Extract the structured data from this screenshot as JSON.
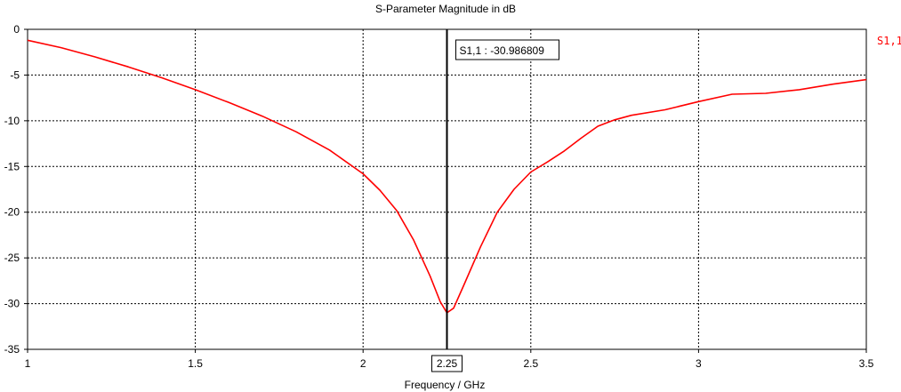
{
  "chart_data": {
    "type": "line",
    "title": "S-Parameter Magnitude in dB",
    "xlabel": "Frequency / GHz",
    "ylabel": "",
    "xlim": [
      1,
      3.5
    ],
    "ylim": [
      -35,
      0
    ],
    "x_ticks": [
      1,
      1.5,
      2,
      2.5,
      3,
      3.5
    ],
    "x_tick_labels": [
      "1",
      "1.5",
      "2",
      "2.5",
      "3",
      "3.5"
    ],
    "y_ticks": [
      0,
      -5,
      -10,
      -15,
      -20,
      -25,
      -30,
      -35
    ],
    "y_tick_labels": [
      "0",
      "-5",
      "-10",
      "-15",
      "-20",
      "-25",
      "-30",
      "-35"
    ],
    "grid": true,
    "legend_position": "top-right",
    "series": [
      {
        "name": "S1,1",
        "color": "#ff0000",
        "x": [
          1,
          1.1,
          1.2,
          1.3,
          1.4,
          1.5,
          1.6,
          1.7,
          1.8,
          1.9,
          2.0,
          2.05,
          2.1,
          2.15,
          2.2,
          2.23,
          2.25,
          2.27,
          2.3,
          2.35,
          2.4,
          2.45,
          2.5,
          2.55,
          2.6,
          2.65,
          2.7,
          2.75,
          2.8,
          2.9,
          3.0,
          3.1,
          3.2,
          3.3,
          3.4,
          3.5
        ],
        "y": [
          -1.2,
          -2.0,
          -3.0,
          -4.1,
          -5.3,
          -6.6,
          -8.0,
          -9.5,
          -11.2,
          -13.2,
          -15.8,
          -17.6,
          -19.8,
          -23.0,
          -27.0,
          -29.8,
          -31.0,
          -30.5,
          -28.0,
          -23.8,
          -20.0,
          -17.5,
          -15.6,
          -14.5,
          -13.3,
          -11.9,
          -10.6,
          -9.9,
          -9.4,
          -8.8,
          -7.9,
          -7.1,
          -7.0,
          -6.6,
          -6.0,
          -5.5
        ]
      }
    ],
    "marker": {
      "x": 2.25,
      "x_label": "2.25",
      "annotation": "S1,1 : -30.986809"
    }
  }
}
